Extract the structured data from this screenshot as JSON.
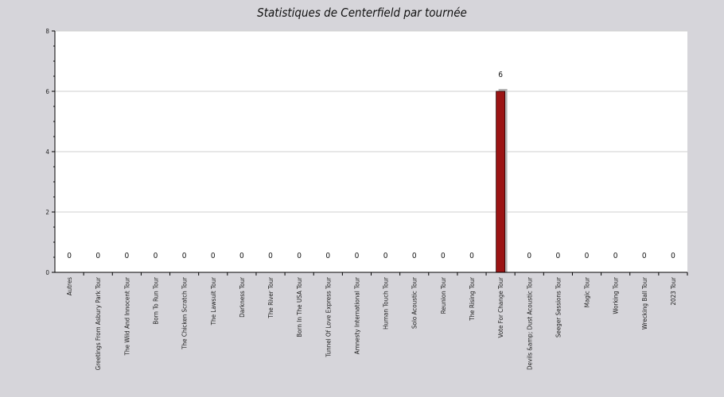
{
  "chart_data": {
    "type": "bar",
    "title": "Statistiques de Centerfield par tournée",
    "xlabel": "",
    "ylabel": "",
    "ylim": [
      0,
      8
    ],
    "yticks": [
      0,
      2,
      4,
      6,
      8
    ],
    "grid": true,
    "legend": "none",
    "categories": [
      "Autres",
      "Greetings From Asbury Park Tour",
      "The Wild And Innocent Tour",
      "Born To Run Tour",
      "The Chicken Scratch Tour",
      "The Lawsuit Tour",
      "Darkness Tour",
      "The River Tour",
      "Born In The USA Tour",
      "Tunnel Of Love Express Tour",
      "Amnesty International Tour",
      "Human Touch Tour",
      "Solo Acoustic Tour",
      "Reunion Tour",
      "The Rising Tour",
      "Vote For Change Tour",
      "Devils &amp; Dust Acoustic Tour",
      "Seeger Sessions Tour",
      "Magic Tour",
      "Working Tour",
      "Wrecking Ball Tour",
      "2023 Tour"
    ],
    "values": [
      0,
      0,
      0,
      0,
      0,
      0,
      0,
      0,
      0,
      0,
      0,
      0,
      0,
      0,
      0,
      6,
      0,
      0,
      0,
      0,
      0,
      0
    ],
    "data_labels": [
      "0",
      "0",
      "0",
      "0",
      "0",
      "0",
      "0",
      "0",
      "0",
      "0",
      "0",
      "0",
      "0",
      "0",
      "0",
      "6",
      "0",
      "0",
      "0",
      "0",
      "0",
      "0"
    ],
    "colors": {
      "bar": "#9b1414",
      "bar_shadow": "#b4b4b4",
      "plot_background": "#ffffff",
      "page_background": "#d6d5da",
      "grid": "#cfcfcf"
    }
  }
}
